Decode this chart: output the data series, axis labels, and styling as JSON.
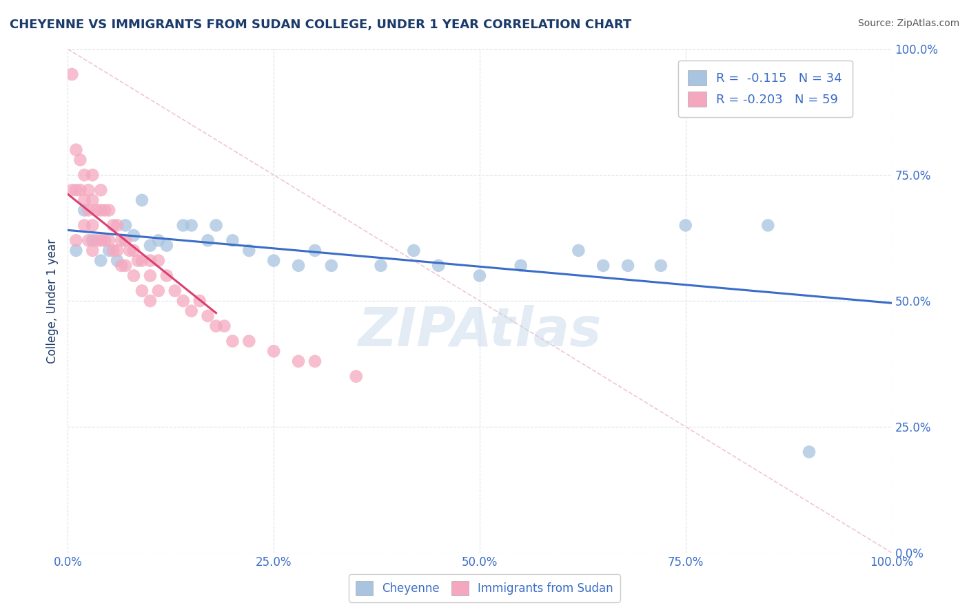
{
  "title": "CHEYENNE VS IMMIGRANTS FROM SUDAN COLLEGE, UNDER 1 YEAR CORRELATION CHART",
  "source": "Source: ZipAtlas.com",
  "ylabel": "College, Under 1 year",
  "legend_labels": [
    "Cheyenne",
    "Immigrants from Sudan"
  ],
  "legend_r": [
    -0.115,
    -0.203
  ],
  "legend_n": [
    34,
    59
  ],
  "blue_color": "#a8c4e0",
  "pink_color": "#f4a8c0",
  "trendline_blue": "#3a6cc8",
  "trendline_pink": "#d94070",
  "diag_color": "#f0c0cc",
  "grid_color": "#d8dde8",
  "title_color": "#1a3a6a",
  "tick_color": "#3a6cc8",
  "watermark_color": "#c8d8ec",
  "blue_points_x": [
    0.01,
    0.02,
    0.03,
    0.04,
    0.05,
    0.06,
    0.07,
    0.08,
    0.09,
    0.1,
    0.11,
    0.12,
    0.14,
    0.15,
    0.17,
    0.18,
    0.2,
    0.22,
    0.25,
    0.28,
    0.3,
    0.32,
    0.38,
    0.42,
    0.45,
    0.5,
    0.55,
    0.62,
    0.65,
    0.68,
    0.72,
    0.75,
    0.85,
    0.9
  ],
  "blue_points_y": [
    0.6,
    0.68,
    0.62,
    0.58,
    0.6,
    0.58,
    0.65,
    0.63,
    0.7,
    0.61,
    0.62,
    0.61,
    0.65,
    0.65,
    0.62,
    0.65,
    0.62,
    0.6,
    0.58,
    0.57,
    0.6,
    0.57,
    0.57,
    0.6,
    0.57,
    0.55,
    0.57,
    0.6,
    0.57,
    0.57,
    0.57,
    0.65,
    0.65,
    0.2
  ],
  "pink_points_x": [
    0.005,
    0.005,
    0.01,
    0.01,
    0.01,
    0.015,
    0.015,
    0.02,
    0.02,
    0.02,
    0.025,
    0.025,
    0.025,
    0.03,
    0.03,
    0.03,
    0.03,
    0.035,
    0.035,
    0.04,
    0.04,
    0.04,
    0.045,
    0.045,
    0.05,
    0.05,
    0.055,
    0.055,
    0.06,
    0.06,
    0.065,
    0.065,
    0.07,
    0.07,
    0.075,
    0.08,
    0.08,
    0.085,
    0.09,
    0.09,
    0.1,
    0.1,
    0.1,
    0.11,
    0.11,
    0.12,
    0.13,
    0.14,
    0.15,
    0.16,
    0.17,
    0.18,
    0.19,
    0.2,
    0.22,
    0.25,
    0.28,
    0.3,
    0.35
  ],
  "pink_points_y": [
    0.95,
    0.72,
    0.8,
    0.72,
    0.62,
    0.78,
    0.72,
    0.75,
    0.7,
    0.65,
    0.72,
    0.68,
    0.62,
    0.75,
    0.7,
    0.65,
    0.6,
    0.68,
    0.62,
    0.72,
    0.68,
    0.62,
    0.68,
    0.62,
    0.68,
    0.62,
    0.65,
    0.6,
    0.65,
    0.6,
    0.62,
    0.57,
    0.62,
    0.57,
    0.6,
    0.6,
    0.55,
    0.58,
    0.58,
    0.52,
    0.58,
    0.55,
    0.5,
    0.58,
    0.52,
    0.55,
    0.52,
    0.5,
    0.48,
    0.5,
    0.47,
    0.45,
    0.45,
    0.42,
    0.42,
    0.4,
    0.38,
    0.38,
    0.35
  ]
}
